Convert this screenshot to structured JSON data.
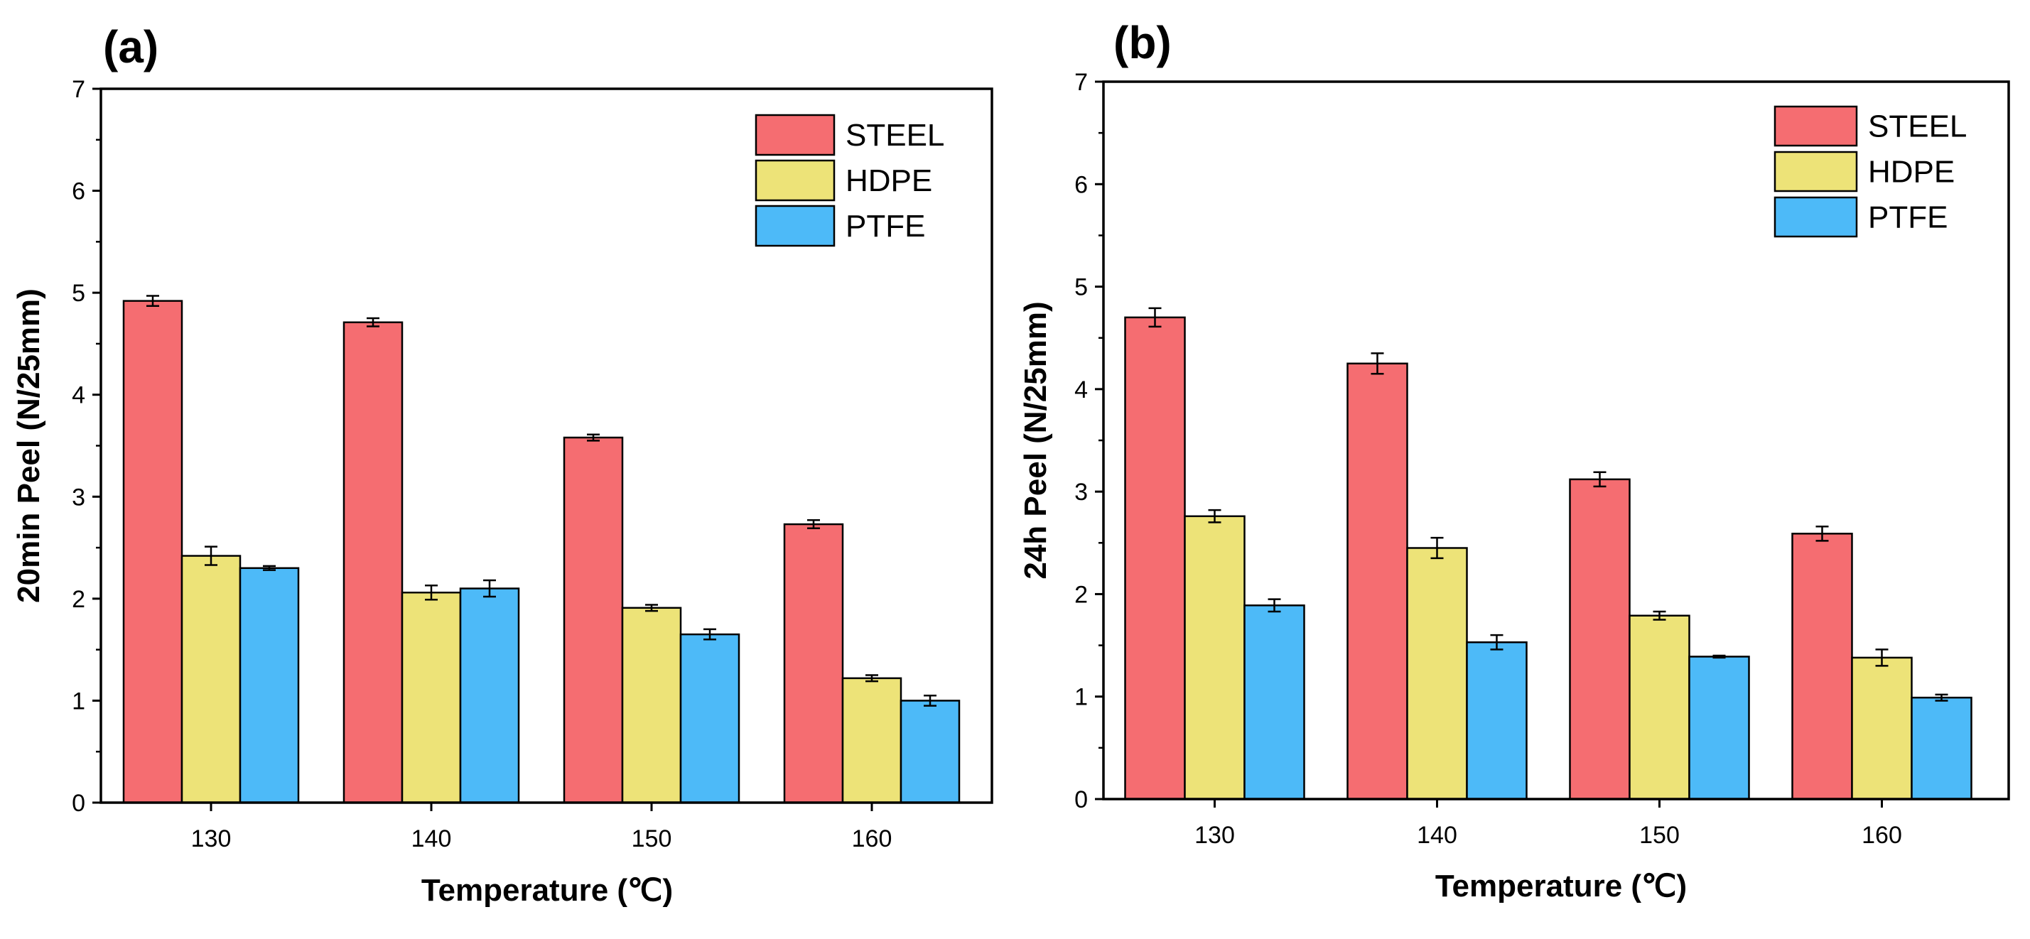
{
  "colors": {
    "STEEL": "#f56d71",
    "HDPE": "#ede378",
    "PTFE": "#4dbaf8"
  },
  "chart_data": [
    {
      "type": "bar",
      "panel_label": "(a)",
      "categories": [
        "130",
        "140",
        "150",
        "160"
      ],
      "xlabel": "Temperature (℃)",
      "ylabel": "20min Peel (N/25mm)",
      "ylim": [
        0,
        7
      ],
      "yticks": [
        "0",
        "1",
        "2",
        "3",
        "4",
        "5",
        "6",
        "7"
      ],
      "legend_position": "top-right",
      "grid": false,
      "series": [
        {
          "name": "STEEL",
          "values": [
            4.92,
            4.71,
            3.58,
            2.73
          ],
          "errors": [
            0.05,
            0.04,
            0.03,
            0.04
          ]
        },
        {
          "name": "HDPE",
          "values": [
            2.42,
            2.06,
            1.91,
            1.22
          ],
          "errors": [
            0.09,
            0.07,
            0.03,
            0.03
          ]
        },
        {
          "name": "PTFE",
          "values": [
            2.3,
            2.1,
            1.65,
            1.0
          ],
          "errors": [
            0.02,
            0.08,
            0.05,
            0.05
          ]
        }
      ]
    },
    {
      "type": "bar",
      "panel_label": "(b)",
      "categories": [
        "130",
        "140",
        "150",
        "160"
      ],
      "xlabel": "Temperature (℃)",
      "ylabel": "24h Peel (N/25mm)",
      "ylim": [
        0,
        7
      ],
      "yticks": [
        "0",
        "1",
        "2",
        "3",
        "4",
        "5",
        "6",
        "7"
      ],
      "legend_position": "top-right",
      "grid": false,
      "series": [
        {
          "name": "STEEL",
          "values": [
            4.7,
            4.25,
            3.12,
            2.59
          ],
          "errors": [
            0.09,
            0.1,
            0.07,
            0.07
          ]
        },
        {
          "name": "HDPE",
          "values": [
            2.76,
            2.45,
            1.79,
            1.38
          ],
          "errors": [
            0.06,
            0.1,
            0.04,
            0.08
          ]
        },
        {
          "name": "PTFE",
          "values": [
            1.89,
            1.53,
            1.39,
            0.99
          ],
          "errors": [
            0.06,
            0.07,
            0.01,
            0.03
          ]
        }
      ]
    }
  ]
}
